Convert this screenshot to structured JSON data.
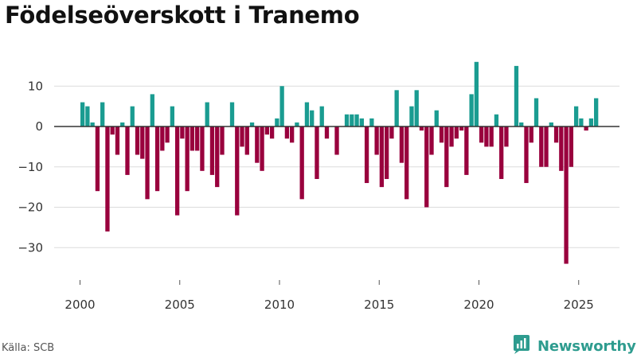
{
  "header": {
    "title": "Födelseöverskott i Tranemo"
  },
  "footer": {
    "source": "Källa: SCB",
    "brand": "Newsworthy"
  },
  "colors": {
    "positive": "#1a9c91",
    "negative": "#99003d",
    "grid": "#dcdcdc",
    "zero_line": "#333333",
    "brand": "#2e9c8f"
  },
  "icons": {
    "brand_logo": "newsworthy-bar-chart-icon"
  },
  "chart_data": {
    "type": "bar",
    "title": "Födelseöverskott i Tranemo",
    "xlabel": "",
    "ylabel": "",
    "frequency": "quarterly",
    "x_start": "2000-Q1",
    "x_ticks": [
      2000,
      2005,
      2010,
      2015,
      2020,
      2025
    ],
    "y_ticks": [
      10,
      0,
      -10,
      -20,
      -30
    ],
    "ylim": [
      -35,
      18
    ],
    "grid": true,
    "series": [
      {
        "values": [
          6,
          5,
          1,
          -16,
          6,
          -26,
          -2,
          -7,
          1,
          -12,
          5,
          -7,
          -8,
          -18,
          8,
          -16,
          -6,
          -4,
          5,
          -22,
          -3,
          -16,
          -6,
          -6,
          -11,
          6,
          -12,
          -15,
          -7,
          0,
          6,
          -22,
          -5,
          -7,
          1,
          -9,
          -11,
          -2,
          -3,
          2,
          10,
          -3,
          -4,
          1,
          -18,
          6,
          4,
          -13,
          5,
          -3,
          0,
          -7,
          0,
          3,
          3,
          3,
          2,
          -14,
          2,
          -7,
          -15,
          -13,
          -3,
          9,
          -9,
          -18,
          5,
          9,
          -1,
          -20,
          -7,
          4,
          -4,
          -15,
          -5,
          -3,
          -1,
          -12,
          8,
          16,
          -4,
          -5,
          -5,
          3,
          -13,
          -5,
          0,
          15,
          1,
          -14,
          -4,
          7,
          -10,
          -10,
          1,
          -4,
          -11,
          -34,
          -10,
          5,
          2,
          -1,
          2,
          7
        ]
      }
    ]
  }
}
